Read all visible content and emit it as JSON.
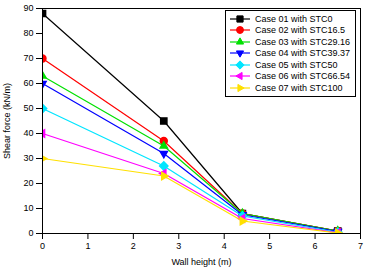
{
  "chart_data": {
    "type": "line",
    "x_label": "Wall height (m)",
    "y_label": "Shear force (kN/m)",
    "x": [
      0,
      2.67,
      4.4,
      6.5
    ],
    "xlim": [
      0,
      7
    ],
    "xticks": [
      0,
      1,
      2,
      3,
      4,
      5,
      6,
      7
    ],
    "ylim": [
      0,
      90
    ],
    "yticks": [
      0,
      10,
      20,
      30,
      40,
      50,
      60,
      70,
      80,
      90
    ],
    "grid": false,
    "legend": "top-right",
    "series": [
      {
        "name": "Case 01 with STC0",
        "color": "#000000",
        "marker": "square",
        "values": [
          88,
          45,
          8,
          1
        ]
      },
      {
        "name": "Case 02 with STC16.5",
        "color": "#ff0000",
        "marker": "circle",
        "values": [
          70,
          37,
          8,
          1
        ]
      },
      {
        "name": "Case 03 with STC29.16",
        "color": "#00e000",
        "marker": "triangle-up",
        "values": [
          63,
          35,
          8,
          1
        ]
      },
      {
        "name": "Case 04 with STC39.37",
        "color": "#0000ff",
        "marker": "triangle-down",
        "values": [
          60,
          32,
          7.5,
          0.8
        ]
      },
      {
        "name": "Case 05 with STC50",
        "color": "#00e5ff",
        "marker": "diamond",
        "values": [
          50,
          27,
          7,
          0.5
        ]
      },
      {
        "name": "Case 06 with STC66.54",
        "color": "#ff00ff",
        "marker": "triangle-left",
        "values": [
          40,
          24,
          6,
          0.3
        ]
      },
      {
        "name": "Case 07 with STC100",
        "color": "#ffe000",
        "marker": "triangle-right",
        "values": [
          30,
          23,
          5,
          0.2
        ]
      }
    ]
  }
}
